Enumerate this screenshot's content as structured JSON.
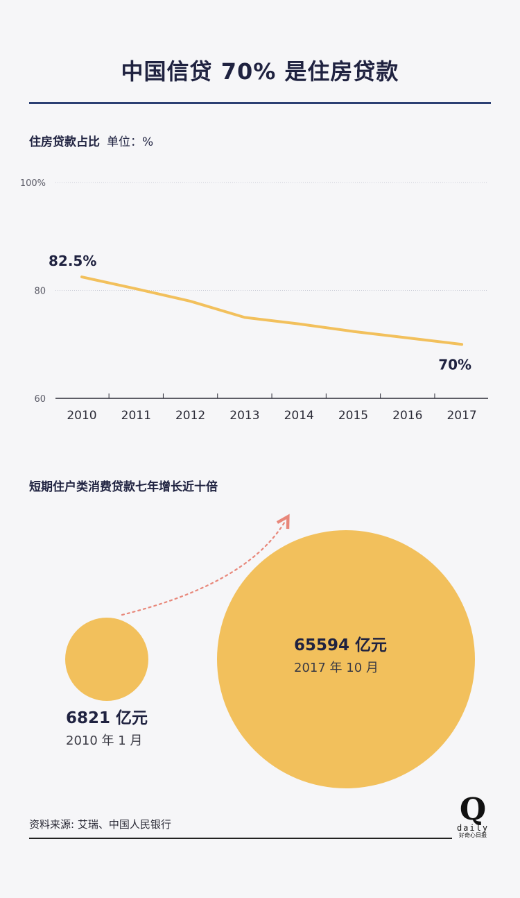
{
  "header": {
    "title": "中国信贷 70% 是住房贷款"
  },
  "chart_data": [
    {
      "type": "line",
      "title": "住房贷款占比",
      "unit_label": "单位：%",
      "x": [
        "2010",
        "2011",
        "2012",
        "2013",
        "2014",
        "2015",
        "2016",
        "2017"
      ],
      "series": [
        {
          "values": [
            82.5,
            80.3,
            78.0,
            75.0,
            73.8,
            72.4,
            71.2,
            70.0
          ]
        }
      ],
      "ylim": [
        60,
        100
      ],
      "yticks": [
        "60",
        "80",
        "100%"
      ],
      "annotations": {
        "start": "82.5%",
        "end": "70%"
      },
      "grid": true,
      "line_color": "#f2c05c"
    },
    {
      "type": "bubble",
      "title": "短期住户类消费贷款七年增长近十倍",
      "points": [
        {
          "value": 6821,
          "value_label": "6821 亿元",
          "date_label": "2010 年 1 月"
        },
        {
          "value": 65594,
          "value_label": "65594 亿元",
          "date_label": "2017 年 10 月"
        }
      ],
      "bubble_color": "#f2c05c",
      "arrow_color": "#e8877a"
    }
  ],
  "footer": {
    "source": "资料来源: 艾瑞、中国人民银行"
  },
  "logo": {
    "letter": "Q",
    "word": "daily",
    "tagline": "好奇心日报"
  }
}
